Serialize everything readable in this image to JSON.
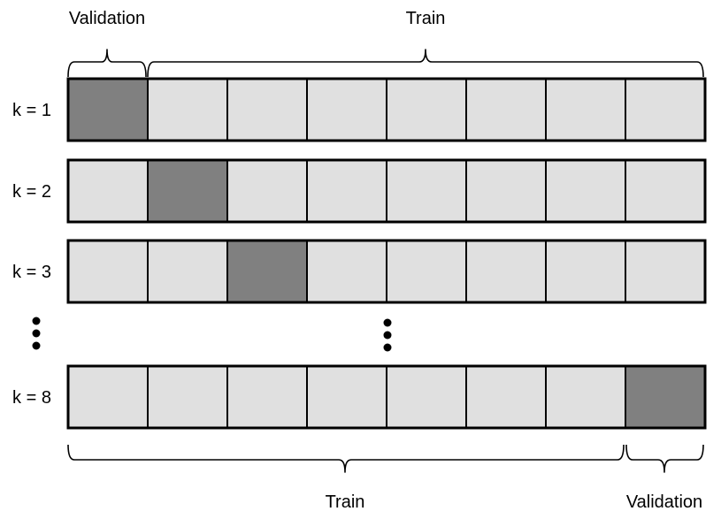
{
  "labels": {
    "top_validation": "Validation",
    "top_train": "Train",
    "bottom_train": "Train",
    "bottom_validation": "Validation"
  },
  "colors": {
    "validation_fill": "#808080",
    "train_fill": "#e0e0e0",
    "border": "#000000"
  },
  "folds": [
    {
      "label": "k = 1",
      "validation_index": 0
    },
    {
      "label": "k = 2",
      "validation_index": 1
    },
    {
      "label": "k = 3",
      "validation_index": 2
    },
    {
      "label": "k = 8",
      "validation_index": 7
    }
  ],
  "segments_per_row": 8
}
